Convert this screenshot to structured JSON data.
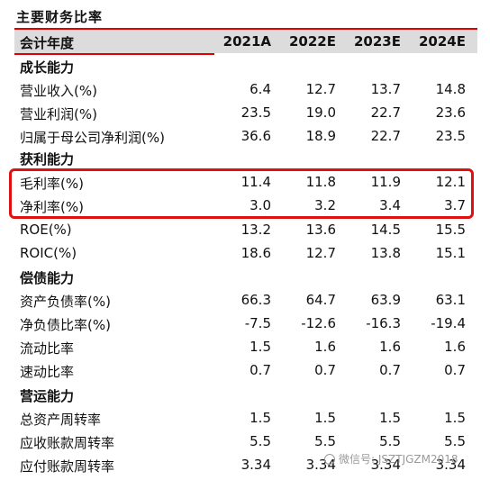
{
  "title": "主要财务比率",
  "header": {
    "label": "会计年度",
    "cols": [
      "2021A",
      "2022E",
      "2023E",
      "2024E"
    ]
  },
  "rows": [
    {
      "label": "成长能力",
      "section": true,
      "values": [
        "",
        "",
        "",
        ""
      ]
    },
    {
      "label": "营业收入(%)",
      "section": false,
      "values": [
        "6.4",
        "12.7",
        "13.7",
        "14.8"
      ]
    },
    {
      "label": "营业利润(%)",
      "section": false,
      "values": [
        "23.5",
        "19.0",
        "22.7",
        "23.6"
      ]
    },
    {
      "label": "归属于母公司净利润(%)",
      "section": false,
      "values": [
        "36.6",
        "18.9",
        "22.7",
        "23.5"
      ]
    },
    {
      "label": "获利能力",
      "section": true,
      "values": [
        "",
        "",
        "",
        ""
      ]
    },
    {
      "label": "毛利率(%)",
      "section": false,
      "values": [
        "11.4",
        "11.8",
        "11.9",
        "12.1"
      ]
    },
    {
      "label": "净利率(%)",
      "section": false,
      "values": [
        "3.0",
        "3.2",
        "3.4",
        "3.7"
      ]
    },
    {
      "label": "ROE(%)",
      "section": false,
      "values": [
        "13.2",
        "13.6",
        "14.5",
        "15.5"
      ]
    },
    {
      "label": "ROIC(%)",
      "section": false,
      "values": [
        "18.6",
        "12.7",
        "13.8",
        "15.1"
      ]
    },
    {
      "label": "偿债能力",
      "section": true,
      "values": [
        "",
        "",
        "",
        ""
      ]
    },
    {
      "label": "资产负债率(%)",
      "section": false,
      "values": [
        "66.3",
        "64.7",
        "63.9",
        "63.1"
      ]
    },
    {
      "label": "净负债比率(%)",
      "section": false,
      "values": [
        "-7.5",
        "-12.6",
        "-16.3",
        "-19.4"
      ]
    },
    {
      "label": "流动比率",
      "section": false,
      "values": [
        "1.5",
        "1.6",
        "1.6",
        "1.6"
      ]
    },
    {
      "label": "速动比率",
      "section": false,
      "values": [
        "0.7",
        "0.7",
        "0.7",
        "0.7"
      ]
    },
    {
      "label": "营运能力",
      "section": true,
      "values": [
        "",
        "",
        "",
        ""
      ]
    },
    {
      "label": "总资产周转率",
      "section": false,
      "values": [
        "1.5",
        "1.5",
        "1.5",
        "1.5"
      ]
    },
    {
      "label": "应收账款周转率",
      "section": false,
      "values": [
        "5.5",
        "5.5",
        "5.5",
        "5.5"
      ]
    },
    {
      "label": "应付账款周转率",
      "section": false,
      "values": [
        "3.34",
        "3.34",
        "3.34",
        "3.34"
      ]
    }
  ],
  "watermark": "微信号: JSZTJGZM2018",
  "colors": {
    "accent": "#e00000",
    "header_bg": "#dcdcdc"
  }
}
